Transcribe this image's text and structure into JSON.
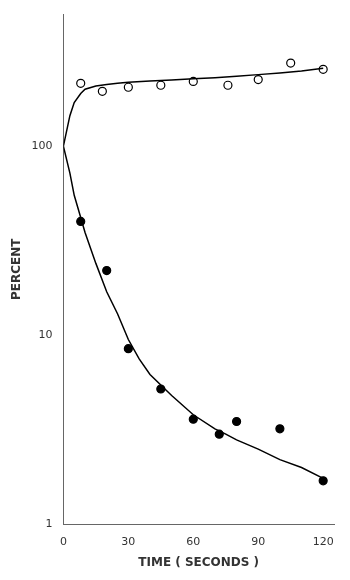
{
  "chart_data": {
    "type": "line",
    "xlabel": "TIME ( SECONDS )",
    "ylabel": "PERCENT",
    "log": "y",
    "grid": false,
    "xlim": [
      0,
      125
    ],
    "ylim": [
      1,
      500
    ],
    "xticks": [
      0,
      30,
      60,
      90,
      120
    ],
    "yticks": [
      1,
      10,
      100
    ],
    "series": [
      {
        "type": "line",
        "color": "#000000",
        "line_style": "solid",
        "x": [
          0,
          3,
          5,
          8,
          10,
          15,
          20,
          25,
          30,
          40,
          50,
          60,
          70,
          80,
          90,
          100,
          110,
          120
        ],
        "values": [
          100,
          145,
          170,
          190,
          200,
          208,
          212,
          215,
          218,
          221,
          224,
          227,
          230,
          234,
          239,
          244,
          250,
          258
        ]
      },
      {
        "type": "line",
        "color": "#000000",
        "line_style": "solid",
        "x": [
          0,
          3,
          5,
          8,
          10,
          15,
          20,
          25,
          30,
          35,
          40,
          50,
          60,
          70,
          75,
          80,
          90,
          100,
          110,
          120
        ],
        "values": [
          100,
          72,
          55,
          42,
          35,
          24,
          17,
          13,
          9.5,
          7.5,
          6.2,
          4.8,
          3.8,
          3.2,
          3.0,
          2.8,
          2.5,
          2.2,
          2.0,
          1.75
        ]
      },
      {
        "type": "scatter",
        "color": "#000000",
        "marker": "circle_open",
        "x": [
          8,
          18,
          30,
          45,
          60,
          76,
          90,
          105,
          120
        ],
        "values": [
          215,
          195,
          205,
          210,
          220,
          210,
          225,
          275,
          255
        ]
      },
      {
        "type": "scatter",
        "color": "#000000",
        "marker": "circle",
        "x": [
          8,
          20,
          30,
          45,
          60,
          72,
          80,
          100,
          120
        ],
        "values": [
          40,
          22,
          8.5,
          5.2,
          3.6,
          3.0,
          3.5,
          3.2,
          1.7
        ]
      }
    ]
  }
}
